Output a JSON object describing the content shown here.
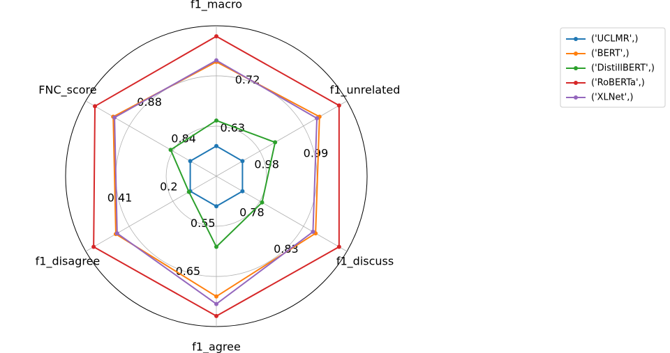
{
  "chart_data": {
    "type": "radar",
    "axes": [
      "f1_macro",
      "f1_unrelated",
      "f1_discuss",
      "f1_agree",
      "f1_disagree",
      "FNC_score"
    ],
    "ring_tick_labels": [
      {
        "axis": "f1_macro",
        "ring": 1,
        "text": "0.63"
      },
      {
        "axis": "f1_macro",
        "ring": 2,
        "text": "0.72"
      },
      {
        "axis": "f1_unrelated",
        "ring": 1,
        "text": "0.98"
      },
      {
        "axis": "f1_unrelated",
        "ring": 2,
        "text": "0.99"
      },
      {
        "axis": "f1_discuss",
        "ring": 1,
        "text": "0.78"
      },
      {
        "axis": "f1_discuss",
        "ring": 2,
        "text": "0.83"
      },
      {
        "axis": "f1_agree",
        "ring": 1,
        "text": "0.55"
      },
      {
        "axis": "f1_agree",
        "ring": 2,
        "text": "0.65"
      },
      {
        "axis": "f1_disagree",
        "ring": 1,
        "text": "0.2"
      },
      {
        "axis": "f1_disagree",
        "ring": 2,
        "text": "0.41"
      },
      {
        "axis": "FNC_score",
        "ring": 1,
        "text": "0.84"
      },
      {
        "axis": "FNC_score",
        "ring": 2,
        "text": "0.88"
      }
    ],
    "series": [
      {
        "name": "('UCLMR',)",
        "color": "#1f77b4",
        "values": [
          0.2,
          0.2,
          0.2,
          0.2,
          0.2,
          0.2
        ]
      },
      {
        "name": "('BERT',)",
        "color": "#ff7f0e",
        "values": [
          0.76,
          0.79,
          0.76,
          0.8,
          0.77,
          0.79
        ]
      },
      {
        "name": "('DistillBERT',)",
        "color": "#2ca02c",
        "values": [
          0.37,
          0.45,
          0.35,
          0.47,
          0.21,
          0.35
        ]
      },
      {
        "name": "('RoBERTa',)",
        "color": "#d62728",
        "values": [
          0.93,
          0.94,
          0.94,
          0.93,
          0.94,
          0.93
        ]
      },
      {
        "name": "('XLNet',)",
        "color": "#9467bd",
        "values": [
          0.77,
          0.77,
          0.74,
          0.85,
          0.76,
          0.78
        ]
      }
    ],
    "grid": true,
    "legend_position": "top-right"
  }
}
